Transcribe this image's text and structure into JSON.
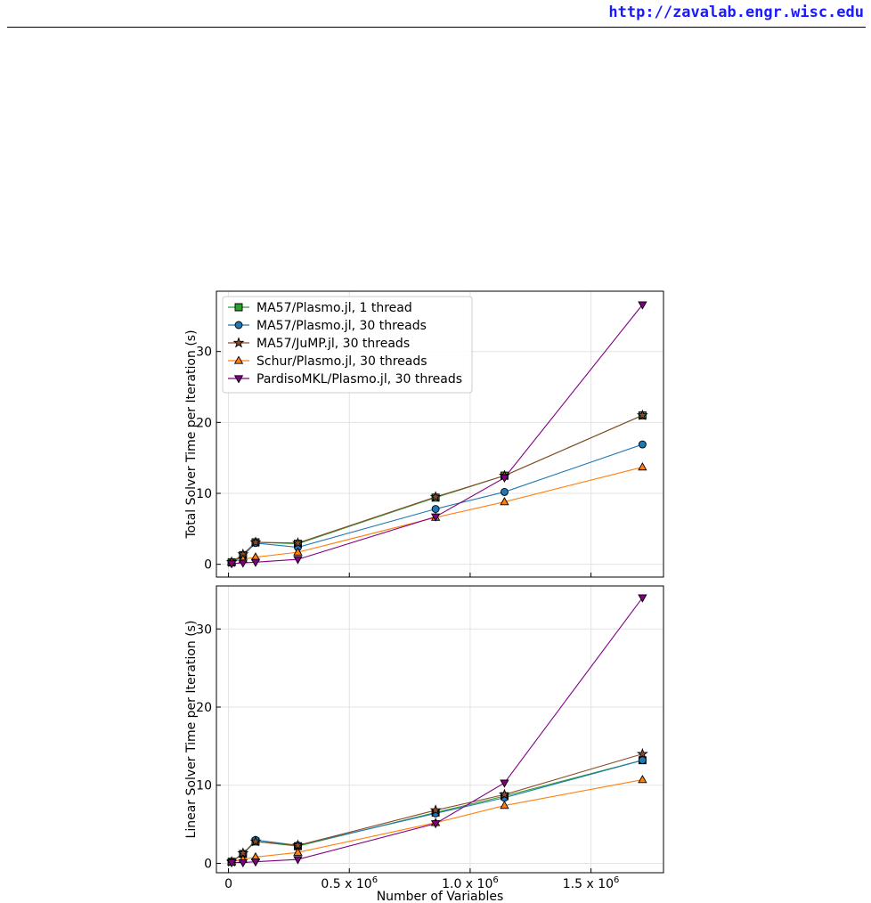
{
  "header": {
    "url": "http://zavalab.engr.wisc.edu"
  },
  "colors": {
    "ma57_1": "#2ca02c",
    "ma57_30": "#1f77b4",
    "jump": "#8c4a2a",
    "schur": "#ff7f0e",
    "pardiso": "#7f0080"
  },
  "chart_data": [
    {
      "type": "line",
      "ylabel": "Total Solver Time per Iteration (s)",
      "xlabel": "",
      "xlim": [
        -50000,
        1800000
      ],
      "ylim": [
        -1.8,
        38.5
      ],
      "yticks": [
        0,
        10,
        20,
        30
      ],
      "ytick_labels": [
        "0",
        "10",
        "20",
        "30"
      ],
      "xticks": [
        0,
        500000,
        1000000,
        1500000
      ],
      "xtick_labels": [],
      "grid": true,
      "legend_position": "upper-left",
      "x": [
        13000,
        60000,
        112000,
        287000,
        857000,
        1142000,
        1713000
      ],
      "series": [
        {
          "name": "MA57/Plasmo.jl, 1 thread",
          "marker": "square",
          "color": "#2ca02c",
          "values": [
            0.3,
            1.3,
            3.1,
            2.9,
            9.4,
            12.5,
            21.0
          ]
        },
        {
          "name": "MA57/Plasmo.jl, 30 threads",
          "marker": "circle",
          "color": "#1f77b4",
          "values": [
            0.2,
            1.2,
            3.0,
            2.4,
            7.8,
            10.2,
            16.9
          ]
        },
        {
          "name": "MA57/JuMP.jl, 30 threads",
          "marker": "star",
          "color": "#8c4a2a",
          "values": [
            0.3,
            1.4,
            3.1,
            3.0,
            9.5,
            12.5,
            21.0
          ]
        },
        {
          "name": "Schur/Plasmo.jl, 30 threads",
          "marker": "triangle-up",
          "color": "#ff7f0e",
          "values": [
            0.3,
            0.7,
            1.0,
            1.7,
            6.6,
            8.8,
            13.7
          ]
        },
        {
          "name": "PardisoMKL/Plasmo.jl, 30 threads",
          "marker": "triangle-down",
          "color": "#7f0080",
          "values": [
            0.1,
            0.2,
            0.3,
            0.7,
            6.7,
            12.2,
            36.6
          ]
        }
      ]
    },
    {
      "type": "line",
      "ylabel": "Linear Solver Time per Iteration (s)",
      "xlabel": "Number of Variables",
      "xlim": [
        -50000,
        1800000
      ],
      "ylim": [
        -1.2,
        35.5
      ],
      "yticks": [
        0,
        10,
        20,
        30
      ],
      "ytick_labels": [
        "0",
        "10",
        "20",
        "30"
      ],
      "xticks": [
        0,
        500000,
        1000000,
        1500000
      ],
      "xtick_labels": [
        "0",
        "0.5 x 10",
        "1.0 x 10",
        "1.5 x 10"
      ],
      "xtick_exponent": "6",
      "grid": true,
      "legend_position": "none",
      "x": [
        13000,
        60000,
        112000,
        287000,
        857000,
        1142000,
        1713000
      ],
      "series": [
        {
          "name": "MA57/Plasmo.jl, 1 thread",
          "marker": "square",
          "color": "#2ca02c",
          "values": [
            0.2,
            1.2,
            2.8,
            2.2,
            6.5,
            8.6,
            13.2
          ]
        },
        {
          "name": "MA57/Plasmo.jl, 30 threads",
          "marker": "circle",
          "color": "#1f77b4",
          "values": [
            0.2,
            1.2,
            3.0,
            2.3,
            6.4,
            8.4,
            13.2
          ]
        },
        {
          "name": "MA57/JuMP.jl, 30 threads",
          "marker": "star",
          "color": "#8c4a2a",
          "values": [
            0.2,
            1.3,
            2.8,
            2.3,
            6.8,
            8.8,
            14.0
          ]
        },
        {
          "name": "Schur/Plasmo.jl, 30 threads",
          "marker": "triangle-up",
          "color": "#ff7f0e",
          "values": [
            0.2,
            0.5,
            0.8,
            1.4,
            5.2,
            7.4,
            10.7
          ]
        },
        {
          "name": "PardisoMKL/Plasmo.jl, 30 threads",
          "marker": "triangle-down",
          "color": "#7f0080",
          "values": [
            0.1,
            0.1,
            0.2,
            0.5,
            5.1,
            10.3,
            34.0
          ]
        }
      ]
    }
  ]
}
